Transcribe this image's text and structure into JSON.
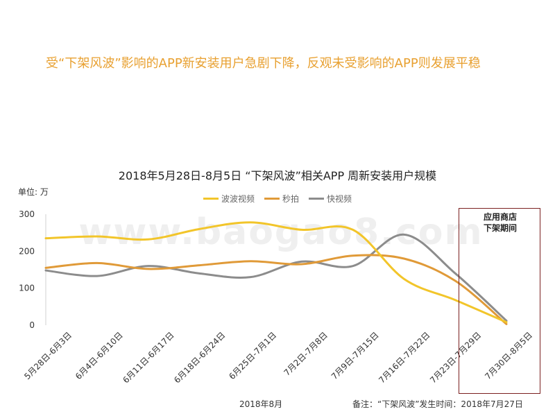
{
  "headline": "受“下架风波”影响的APP新安装用户急剧下降，反观未受影响的APP则发展平稳",
  "watermark": "www.baogao8.com",
  "highlight_label_line1": "应用商店",
  "highlight_label_line2": "下架期间",
  "footnote_left": "2018年8月",
  "footnote_right": "备注：“下架风波”发生时间：2018年7月27日",
  "chart_data": {
    "type": "line",
    "title": "2018年5月28日-8月5日 “下架风波”相关APP 周新安装用户规模",
    "unit_label": "单位: 万",
    "categories": [
      "5月28日-6月3日",
      "6月4日-6月10日",
      "6月11日-6月17日",
      "6月18日-6月24日",
      "6月25日-7月1日",
      "7月2日-7月8日",
      "7月9日-7月15日",
      "7月16日-7月22日",
      "7月23日-7月29日",
      "7月30日-8月5日"
    ],
    "ylim": [
      0,
      300
    ],
    "yticks": [
      0,
      100,
      200,
      300
    ],
    "legend_position": "top-center",
    "series": [
      {
        "name": "波波视频",
        "color": "#f2c52a",
        "values": [
          235,
          240,
          232,
          260,
          278,
          258,
          258,
          125,
          68,
          8
        ]
      },
      {
        "name": "秒拍",
        "color": "#e09a38",
        "values": [
          155,
          168,
          152,
          162,
          173,
          165,
          188,
          180,
          120,
          3
        ]
      },
      {
        "name": "快视频",
        "color": "#8c8c8c",
        "values": [
          148,
          133,
          160,
          140,
          130,
          172,
          160,
          245,
          140,
          12
        ]
      }
    ]
  }
}
